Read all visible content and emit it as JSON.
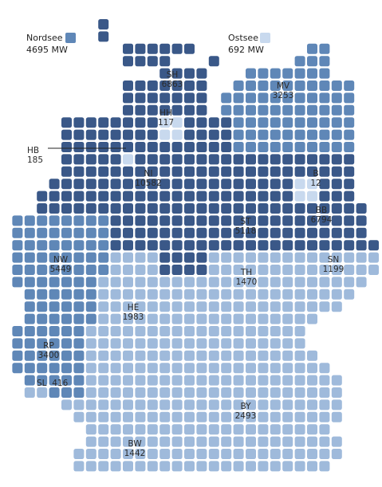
{
  "colors": {
    "dark": "#3a5888",
    "mid": "#5f87b7",
    "light": "#9fbadb",
    "pale": "#c8d9ee"
  },
  "legend": {
    "nordsee": {
      "name": "Nordsee",
      "value": "4695 MW",
      "tone": "mid"
    },
    "ostsee": {
      "name": "Ostsee",
      "value": "692 MW",
      "tone": "pale"
    }
  },
  "states": [
    {
      "id": "sh",
      "name": "SH",
      "value": "6863",
      "tone": "dark"
    },
    {
      "id": "mv",
      "name": "MV",
      "value": "3253",
      "tone": "mid"
    },
    {
      "id": "hh",
      "name": "HH",
      "value": "117",
      "tone": "pale"
    },
    {
      "id": "hb",
      "name": "HB",
      "value": "185",
      "tone": "pale"
    },
    {
      "id": "ni",
      "name": "NI",
      "value": "10582",
      "tone": "dark"
    },
    {
      "id": "b",
      "name": "B",
      "value": "12",
      "tone": "pale"
    },
    {
      "id": "bb",
      "name": "BB",
      "value": "6794",
      "tone": "dark"
    },
    {
      "id": "st",
      "name": "ST",
      "value": "5118",
      "tone": "dark"
    },
    {
      "id": "nw",
      "name": "NW",
      "value": "5449",
      "tone": "mid"
    },
    {
      "id": "th",
      "name": "TH",
      "value": "1470",
      "tone": "light"
    },
    {
      "id": "sn",
      "name": "SN",
      "value": "1199",
      "tone": "light"
    },
    {
      "id": "he",
      "name": "HE",
      "value": "1983",
      "tone": "light"
    },
    {
      "id": "rp",
      "name": "RP",
      "value": "3400",
      "tone": "mid"
    },
    {
      "id": "sl",
      "name": "SL",
      "value": "416",
      "tone": "light"
    },
    {
      "id": "by",
      "name": "BY",
      "value": "2493",
      "tone": "light"
    },
    {
      "id": "bw",
      "name": "BW",
      "value": "1442",
      "tone": "light"
    }
  ]
}
